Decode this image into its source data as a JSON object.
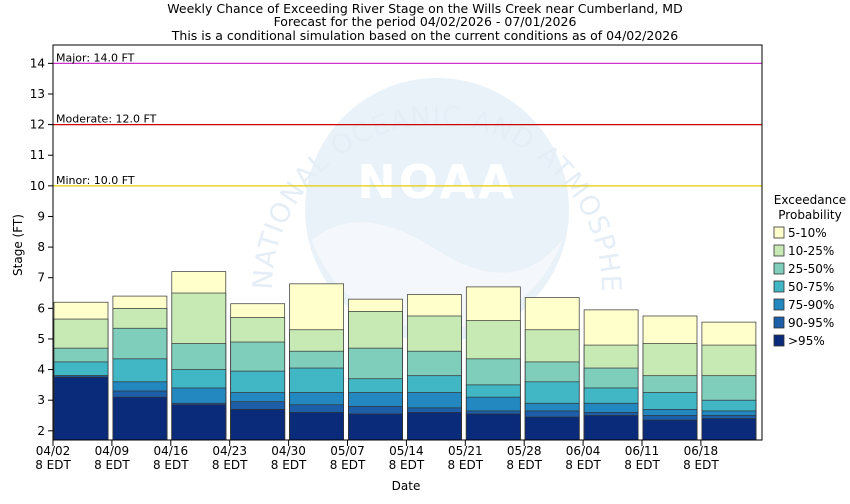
{
  "chart_data": {
    "type": "bar",
    "title_lines": [
      "Weekly Chance of Exceeding River Stage on the Wills Creek near Cumberland, MD",
      "Forecast for the period 04/02/2026 - 07/01/2026",
      "This is a conditional simulation based on the current conditions as of 04/02/2026"
    ],
    "xlabel": "Date",
    "ylabel": "Stage (FT)",
    "ylim": [
      1.7,
      14.6
    ],
    "yticks": [
      2,
      3,
      4,
      5,
      6,
      7,
      8,
      9,
      10,
      11,
      12,
      13,
      14
    ],
    "watermark": {
      "text": "NATIONAL OCEANIC AND ATMOSPHERIC ADMINISTRATION",
      "logo": "NOAA"
    },
    "categories": [
      {
        "date": "04/02",
        "tz": "8 EDT"
      },
      {
        "date": "04/09",
        "tz": "8 EDT"
      },
      {
        "date": "04/16",
        "tz": "8 EDT"
      },
      {
        "date": "04/23",
        "tz": "8 EDT"
      },
      {
        "date": "04/30",
        "tz": "8 EDT"
      },
      {
        "date": "05/07",
        "tz": "8 EDT"
      },
      {
        "date": "05/14",
        "tz": "8 EDT"
      },
      {
        "date": "05/21",
        "tz": "8 EDT"
      },
      {
        "date": "05/28",
        "tz": "8 EDT"
      },
      {
        "date": "06/04",
        "tz": "8 EDT"
      },
      {
        "date": "06/11",
        "tz": "8 EDT"
      },
      {
        "date": "06/18",
        "tz": "8 EDT"
      }
    ],
    "thresholds": [
      {
        "label": "Major: 14.0 FT",
        "value": 14.0,
        "color": "#cc33cc"
      },
      {
        "label": "Moderate: 12.0 FT",
        "value": 12.0,
        "color": "#cc0000"
      },
      {
        "label": "Minor: 10.0 FT",
        "value": 10.0,
        "color": "#e6cc00"
      }
    ],
    "legend": {
      "title_lines": [
        "Exceedance",
        "Probability"
      ],
      "placement": "right"
    },
    "series": [
      {
        "name": ">95%",
        "color": "#0a2a7a",
        "top": [
          3.75,
          3.1,
          2.85,
          2.7,
          2.6,
          2.55,
          2.6,
          2.55,
          2.45,
          2.5,
          2.35,
          2.4
        ]
      },
      {
        "name": "90-95%",
        "color": "#1d5ea8",
        "top": [
          3.8,
          3.3,
          2.9,
          2.95,
          2.85,
          2.8,
          2.75,
          2.65,
          2.65,
          2.6,
          2.5,
          2.5
        ]
      },
      {
        "name": "75-90%",
        "color": "#2288bf",
        "top": [
          3.8,
          3.6,
          3.4,
          3.25,
          3.25,
          3.25,
          3.25,
          3.1,
          2.9,
          2.9,
          2.7,
          2.65
        ]
      },
      {
        "name": "50-75%",
        "color": "#41b6c4",
        "top": [
          4.25,
          4.35,
          4.0,
          3.95,
          4.05,
          3.7,
          3.8,
          3.5,
          3.6,
          3.4,
          3.25,
          3.0
        ]
      },
      {
        "name": "25-50%",
        "color": "#7fcdbb",
        "top": [
          4.7,
          5.35,
          4.85,
          4.9,
          4.6,
          4.7,
          4.6,
          4.35,
          4.25,
          4.05,
          3.8,
          3.8
        ]
      },
      {
        "name": "10-25%",
        "color": "#c7e9b4",
        "top": [
          5.65,
          6.0,
          6.5,
          5.7,
          5.3,
          5.9,
          5.75,
          5.6,
          5.3,
          4.8,
          4.85,
          4.8
        ]
      },
      {
        "name": "5-10%",
        "color": "#ffffcc",
        "top": [
          6.2,
          6.4,
          7.2,
          6.15,
          6.8,
          6.3,
          6.45,
          6.7,
          6.35,
          5.95,
          5.75,
          5.55
        ]
      }
    ]
  }
}
